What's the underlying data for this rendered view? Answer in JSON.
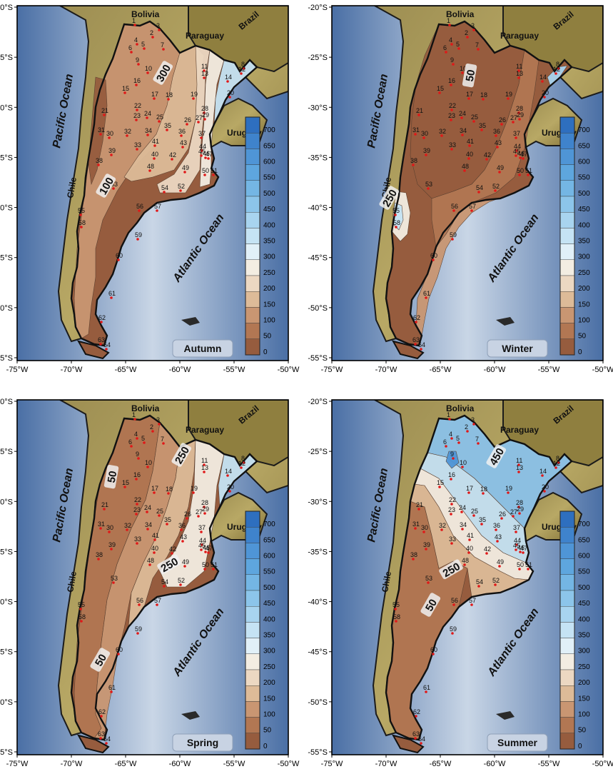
{
  "lon_labels": [
    "-75°W",
    "-70°W",
    "-65°W",
    "-60°W",
    "-55°W",
    "-50°W"
  ],
  "lat_labels": [
    "-20°S",
    "-25°S",
    "-30°S",
    "-35°S",
    "-40°S",
    "-45°S",
    "-50°S",
    "-55°S"
  ],
  "countries": {
    "bolivia": "Bolivia",
    "paraguay": "Paraguay",
    "brazil": "Brazil",
    "uruguay": "Uruguay",
    "chile": "Chile"
  },
  "oceans": {
    "pacific": "Pacific Ocean",
    "atlantic": "Atlantic Ocean"
  },
  "colorbar": {
    "ticks": [
      "700",
      "650",
      "600",
      "550",
      "500",
      "450",
      "400",
      "350",
      "300",
      "250",
      "200",
      "150",
      "100",
      "50",
      "0"
    ],
    "colors": [
      "#2e6fbf",
      "#3f83cc",
      "#4f95d6",
      "#5ea6de",
      "#74b6e4",
      "#8cc5ea",
      "#a8d4ef",
      "#c5e3f4",
      "#e1f0f8",
      "#f3ede2",
      "#ecd8c2",
      "#ddbb98",
      "#c99672",
      "#b27753",
      "#965c3e"
    ]
  },
  "stations": [
    "1",
    "2",
    "3",
    "4",
    "5",
    "6",
    "7",
    "8",
    "9",
    "10",
    "11",
    "12",
    "13",
    "14",
    "15",
    "16",
    "17",
    "18",
    "19",
    "20",
    "21",
    "22",
    "23",
    "24",
    "25",
    "26",
    "27",
    "28",
    "29",
    "30",
    "31",
    "32",
    "33",
    "34",
    "35",
    "36",
    "37",
    "38",
    "39",
    "40",
    "41",
    "42",
    "43",
    "44",
    "45",
    "46",
    "47",
    "48",
    "49",
    "50",
    "51",
    "52",
    "53",
    "54",
    "55",
    "56",
    "57",
    "58",
    "59",
    "60",
    "61",
    "62",
    "63",
    "64"
  ],
  "panels": [
    {
      "season": "Autumn",
      "contour_labels": [
        "300",
        "100"
      ]
    },
    {
      "season": "Winter",
      "contour_labels": [
        "50",
        "250"
      ]
    },
    {
      "season": "Spring",
      "contour_labels": [
        "50",
        "250",
        "250",
        "50"
      ]
    },
    {
      "season": "Summer",
      "contour_labels": [
        "450",
        "250",
        "50"
      ]
    }
  ]
}
